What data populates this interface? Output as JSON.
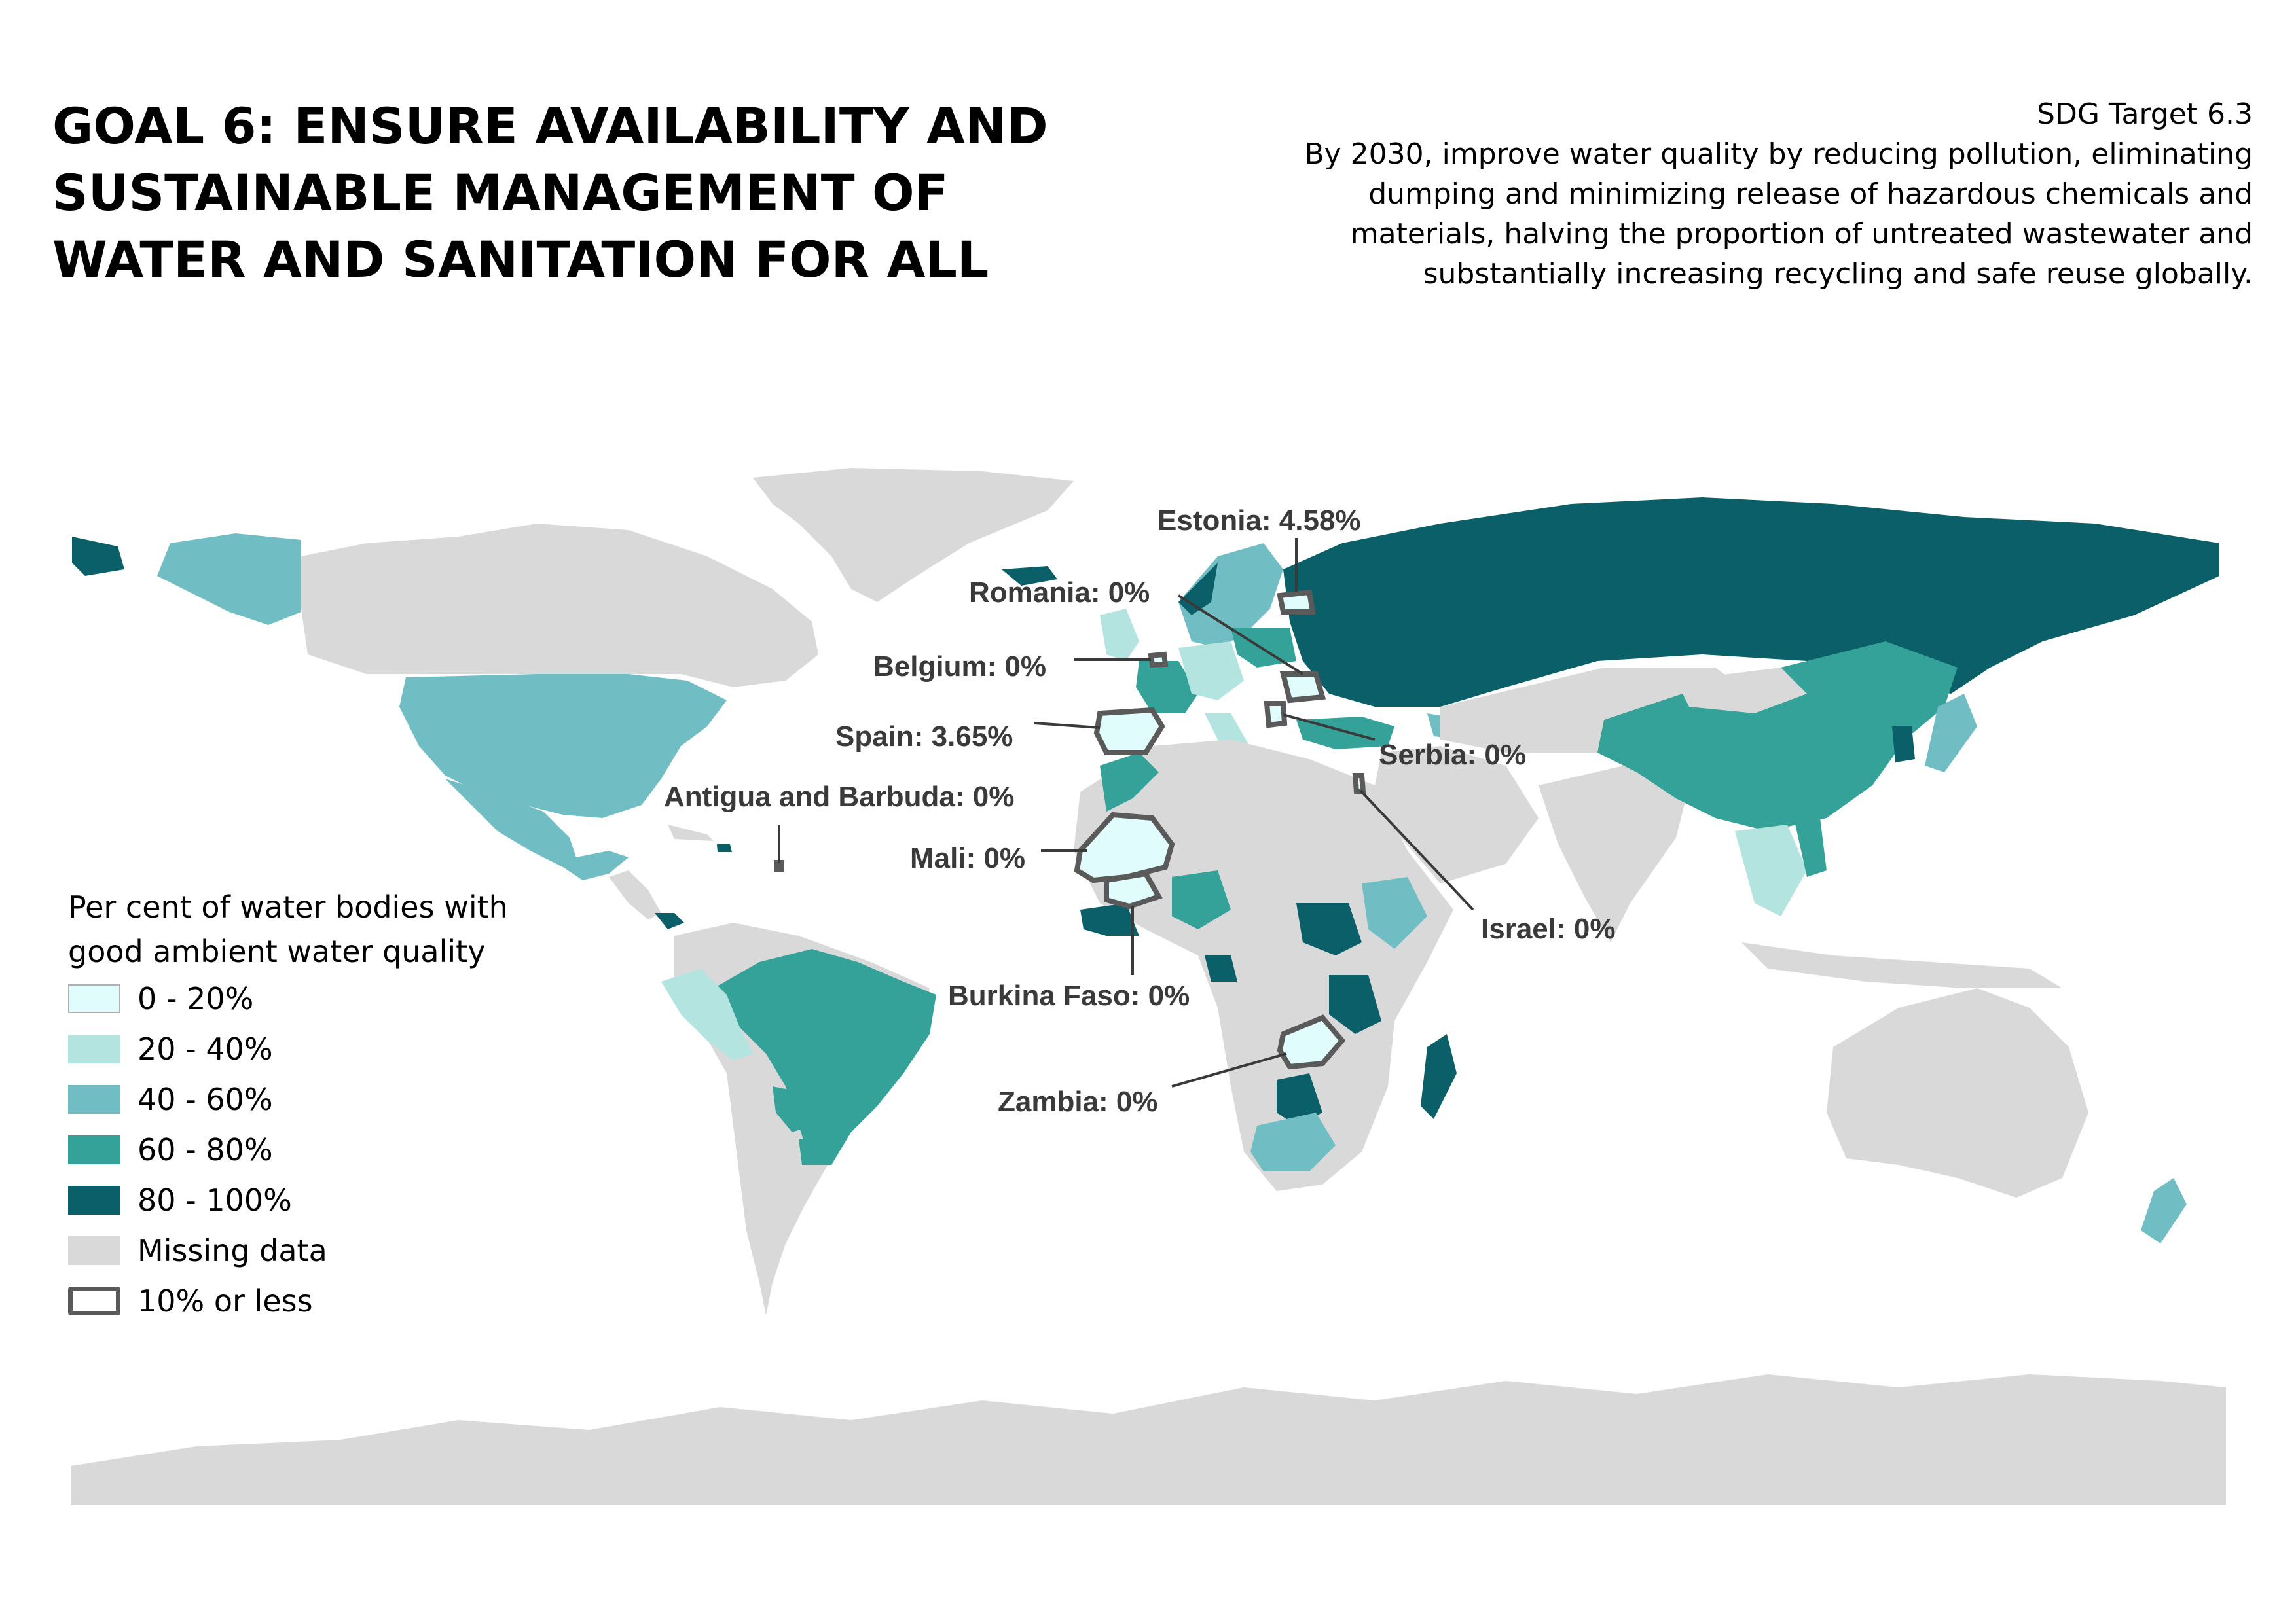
{
  "header": {
    "title_lines": [
      "GOAL 6: ENSURE AVAILABILITY AND",
      "SUSTAINABLE MANAGEMENT OF",
      "WATER AND SANITATION FOR ALL"
    ],
    "target_label": "SDG Target 6.3",
    "target_lines": [
      "By 2030, improve water quality by reducing pollution, eliminating",
      "dumping and minimizing release of hazardous chemicals and",
      "materials, halving the proportion of untreated wastewater and",
      "substantially increasing recycling and safe reuse globally."
    ]
  },
  "legend": {
    "title_lines": [
      "Per cent of water bodies with",
      "good ambient water quality"
    ],
    "items": [
      {
        "label": "0 - 20%",
        "color": "#e0fcfc"
      },
      {
        "label": "20 - 40%",
        "color": "#b4e4e0"
      },
      {
        "label": "40 - 60%",
        "color": "#70bec4"
      },
      {
        "label": "60 - 80%",
        "color": "#35a29a"
      },
      {
        "label": "80 - 100%",
        "color": "#0a5f68"
      },
      {
        "label": "Missing data",
        "color": "#d9d9d9"
      },
      {
        "label": "10% or less",
        "color": "#ffffff",
        "outline": "#5a5a5a"
      }
    ]
  },
  "callouts": {
    "estonia": "Estonia: 4.58%",
    "romania": "Romania: 0%",
    "belgium": "Belgium: 0%",
    "spain": "Spain: 3.65%",
    "antigua": "Antigua and Barbuda: 0%",
    "mali": "Mali: 0%",
    "serbia": "Serbia: 0%",
    "israel": "Israel: 0%",
    "burkina": "Burkina Faso: 0%",
    "zambia": "Zambia: 0%"
  },
  "colors": {
    "missing": "#d9d9d9",
    "c0_20": "#e0fcfc",
    "c20_40": "#b4e4e0",
    "c40_60": "#70bec4",
    "c60_80": "#35a29a",
    "c80_100": "#0a5f68",
    "outline": "#5a5a5a"
  }
}
